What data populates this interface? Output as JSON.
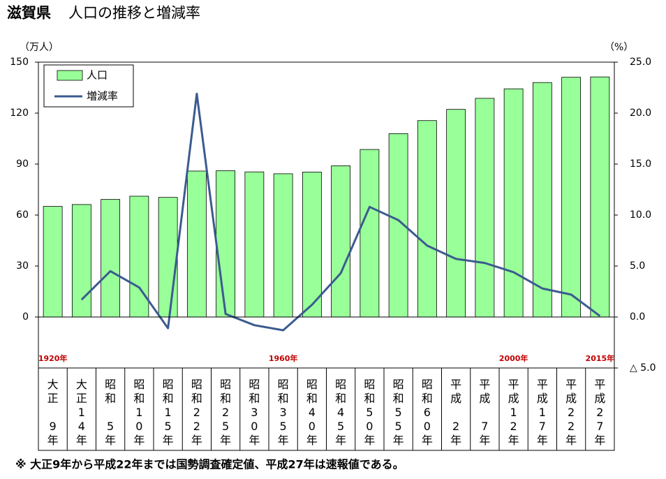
{
  "chart_data": {
    "type": "bar-line",
    "title": "滋賀県",
    "subtitle": "人口の推移と増減率",
    "y_unit": "（万人）",
    "y2_unit": "（%）",
    "note": "※ 大正9年から平成22年までは国勢調査確定値、平成27年は速報値である。",
    "categories": [
      "大正9年",
      "大正14年",
      "昭和5年",
      "昭和10年",
      "昭和15年",
      "昭和22年",
      "昭和25年",
      "昭和30年",
      "昭和35年",
      "昭和40年",
      "昭和45年",
      "昭和50年",
      "昭和55年",
      "昭和60年",
      "平成2年",
      "平成7年",
      "平成12年",
      "平成17年",
      "平成22年",
      "平成27年"
    ],
    "year_labels": [
      "1920年",
      null,
      null,
      null,
      null,
      null,
      null,
      null,
      "1960年",
      null,
      null,
      null,
      null,
      null,
      null,
      null,
      "2000年",
      null,
      null,
      "2015年"
    ],
    "series": [
      {
        "name": "人口",
        "type": "bar",
        "color": "#99ff99",
        "values": [
          65.1,
          66.2,
          69.2,
          71.1,
          70.4,
          85.9,
          86.1,
          85.4,
          84.3,
          85.3,
          89.0,
          98.6,
          107.9,
          115.6,
          122.2,
          128.7,
          134.3,
          138.0,
          141.1,
          141.3
        ]
      },
      {
        "name": "増減率",
        "type": "line",
        "axis": "y2",
        "color": "#3b5b8f",
        "values": [
          null,
          1.7,
          4.5,
          2.9,
          -1.1,
          21.9,
          0.3,
          -0.8,
          -1.3,
          1.2,
          4.3,
          10.8,
          9.5,
          7.0,
          5.7,
          5.3,
          4.4,
          2.8,
          2.2,
          0.1
        ]
      }
    ],
    "ylim": [
      -30,
      150
    ],
    "yticks": [
      0,
      30,
      60,
      90,
      120,
      150
    ],
    "y2lim": [
      -5,
      25
    ],
    "y2ticks": [
      {
        "value": -5,
        "label": "△ 5.0"
      },
      {
        "value": 0,
        "label": "0.0"
      },
      {
        "value": 5,
        "label": "5.0"
      },
      {
        "value": 10,
        "label": "10.0"
      },
      {
        "value": 15,
        "label": "15.0"
      },
      {
        "value": 20,
        "label": "20.0"
      },
      {
        "value": 25,
        "label": "25.0"
      }
    ],
    "legend": "upper left",
    "grid": false
  }
}
